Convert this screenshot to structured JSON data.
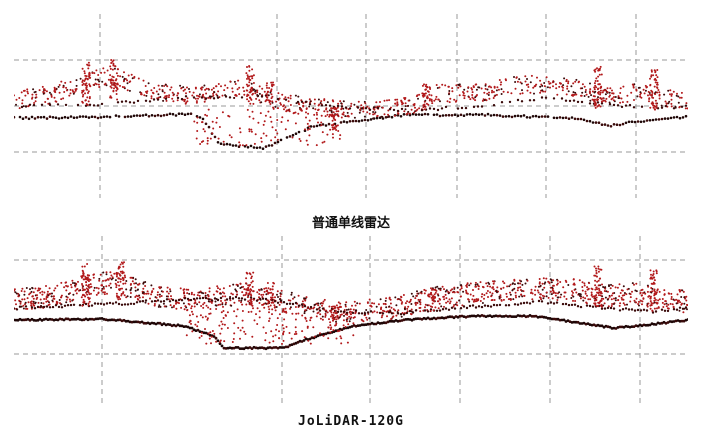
{
  "panels": [
    {
      "caption": "普通单线雷达"
    },
    {
      "caption": "JoLiDAR-120G"
    }
  ],
  "colors": {
    "grid": "#9a9a9a",
    "point_red": "#b2191b",
    "point_dark": "#3a0a0a",
    "ground_dark": "#1e0606"
  }
}
